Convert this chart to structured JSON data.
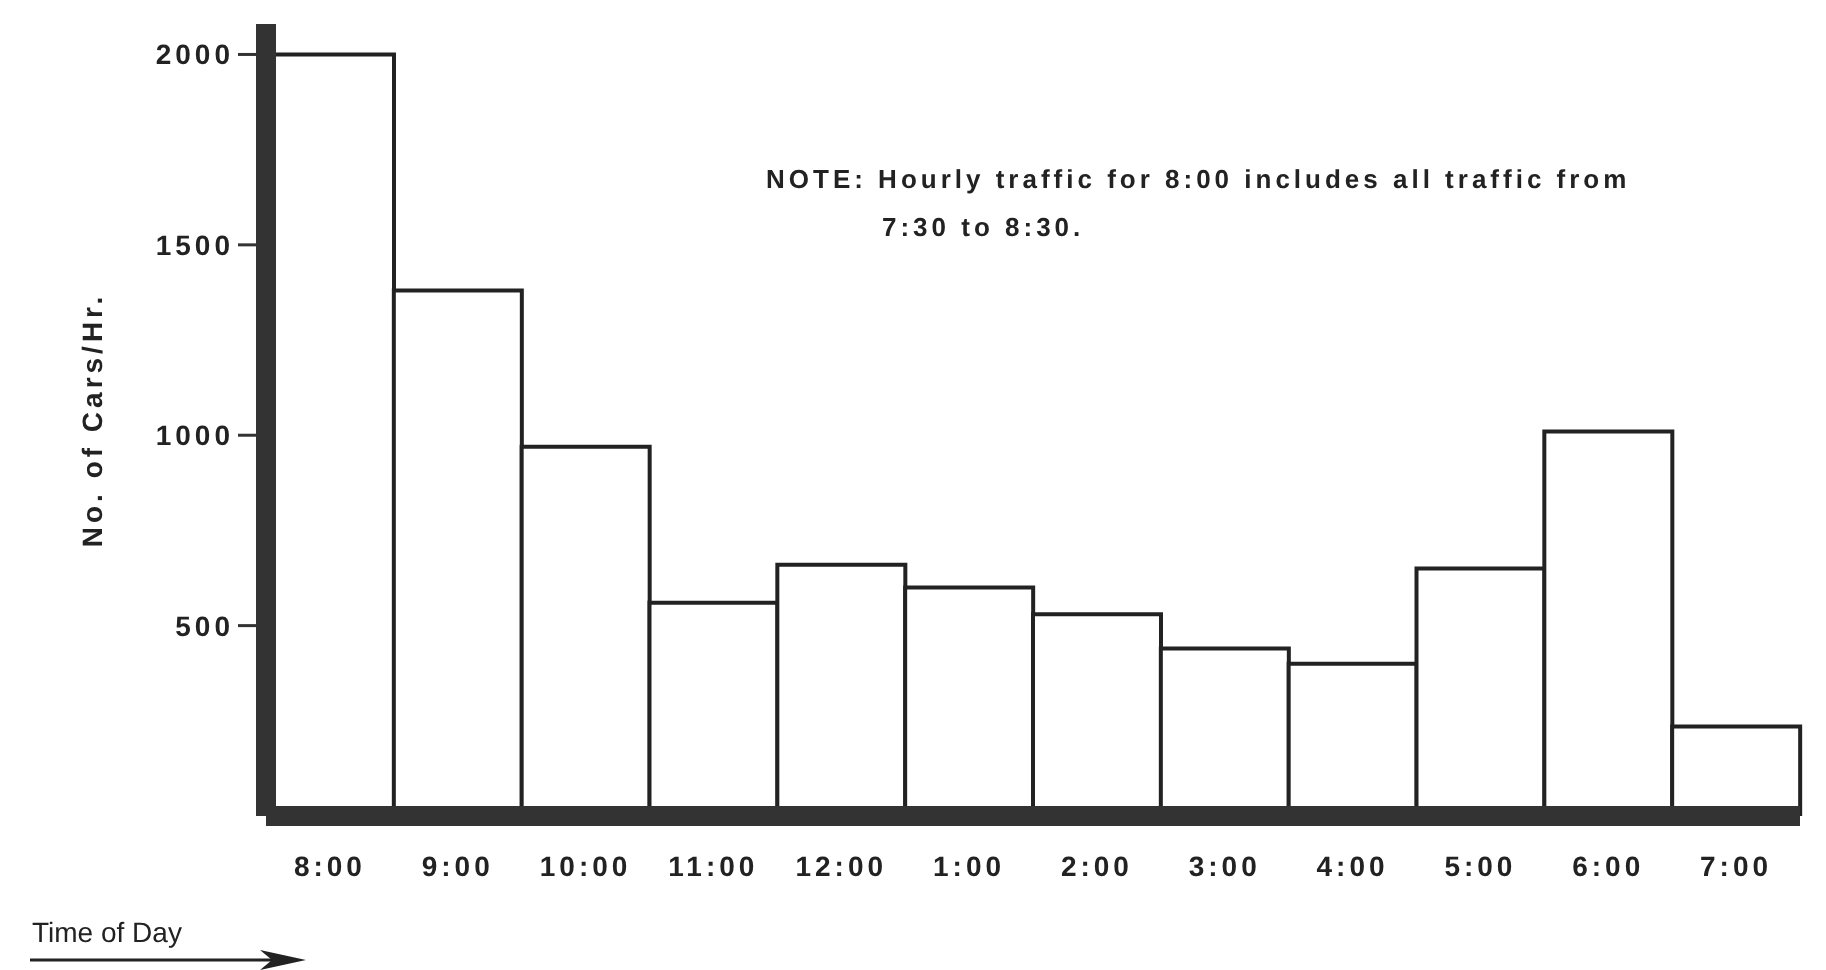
{
  "chart_data": {
    "type": "bar",
    "xlabel": "Time of Day",
    "ylabel": "No. of Cars/Hr.",
    "categories": [
      "8:00",
      "9:00",
      "10:00",
      "11:00",
      "12:00",
      "1:00",
      "2:00",
      "3:00",
      "4:00",
      "5:00",
      "6:00",
      "7:00"
    ],
    "values": [
      2000,
      1380,
      970,
      560,
      660,
      600,
      530,
      440,
      400,
      650,
      1010,
      235
    ],
    "color": "#ffffff",
    "ylim": [
      0,
      2080
    ],
    "yticks": [
      500,
      1000,
      1500,
      2000
    ],
    "annotations": [
      "NOTE: Hourly traffic for 8:00 includes all traffic from 7:30 to 8:30."
    ]
  }
}
